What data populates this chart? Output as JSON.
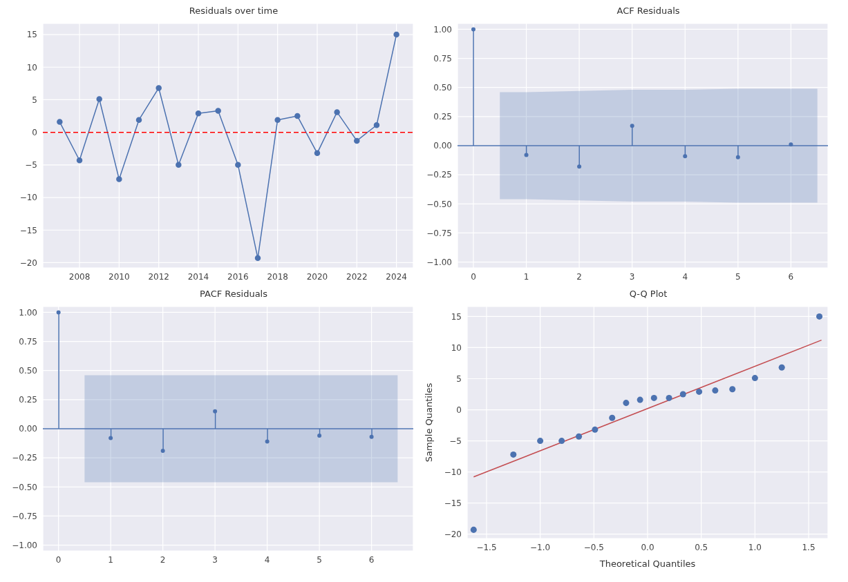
{
  "chart_data": [
    {
      "type": "line",
      "title": "Residuals over time",
      "x": [
        2007,
        2008,
        2009,
        2010,
        2011,
        2012,
        2013,
        2014,
        2015,
        2016,
        2017,
        2018,
        2019,
        2020,
        2021,
        2022,
        2023,
        2024
      ],
      "values": [
        1.6,
        -4.3,
        5.1,
        -7.2,
        1.9,
        6.8,
        -5.0,
        2.9,
        3.3,
        -5.0,
        -19.3,
        1.9,
        2.5,
        -3.2,
        3.1,
        -1.3,
        1.1,
        15.0
      ],
      "color": "#4c72b0",
      "marker": "circle",
      "grid": true,
      "xlim": [
        2006.15,
        2024.85
      ],
      "xticks": [
        2008,
        2010,
        2012,
        2014,
        2016,
        2018,
        2020,
        2022,
        2024
      ],
      "ylim": [
        -20.8,
        16.7
      ],
      "yticks": [
        {
          "value": -20,
          "label": "−20"
        },
        {
          "value": -15,
          "label": "−15"
        },
        {
          "value": -10,
          "label": "−10"
        },
        {
          "value": -5,
          "label": "−5"
        },
        0,
        5,
        10,
        15
      ],
      "ref_lines": [
        {
          "axis": "y",
          "value": 0,
          "color": "#ff0000",
          "line_style": "dashed"
        }
      ]
    },
    {
      "type": "lollipop",
      "title": "ACF Residuals",
      "x": [
        0,
        1,
        2,
        3,
        4,
        5,
        6
      ],
      "grid": true,
      "series": [
        {
          "color": "#4c72b0",
          "values": [
            1.0,
            -0.08,
            -0.18,
            0.17,
            -0.09,
            -0.1,
            0.01
          ]
        },
        {
          "type": "line",
          "color": "#4c72b0",
          "marker": "none",
          "x": [
            -0.3,
            0.5,
            1,
            2,
            3,
            4,
            5,
            6,
            6.5,
            6.7
          ],
          "values": [
            0,
            0,
            0,
            0,
            0,
            0,
            0,
            0,
            0,
            0
          ],
          "lower": [
            null,
            -0.46,
            -0.46,
            -0.47,
            -0.48,
            -0.48,
            -0.49,
            -0.49,
            -0.49,
            null
          ],
          "upper": [
            null,
            0.46,
            0.46,
            0.47,
            0.48,
            0.48,
            0.49,
            0.49,
            0.49,
            null
          ]
        }
      ],
      "xlim": [
        -0.3,
        6.7
      ],
      "xticks": [
        0,
        1,
        2,
        3,
        4,
        5,
        6
      ],
      "ylim": [
        -1.05,
        1.05
      ],
      "yticks": [
        {
          "value": -1,
          "label": "−1.00"
        },
        {
          "value": -0.75,
          "label": "−0.75"
        },
        {
          "value": -0.5,
          "label": "−0.50"
        },
        {
          "value": -0.25,
          "label": "−0.25"
        },
        {
          "value": 0,
          "label": "0.00"
        },
        {
          "value": 0.25,
          "label": "0.25"
        },
        {
          "value": 0.5,
          "label": "0.50"
        },
        {
          "value": 0.75,
          "label": "0.75"
        },
        {
          "value": 1,
          "label": "1.00"
        }
      ]
    },
    {
      "type": "lollipop",
      "title": "PACF Residuals",
      "x": [
        0,
        1,
        2,
        3,
        4,
        5,
        6
      ],
      "grid": true,
      "series": [
        {
          "color": "#4c72b0",
          "values": [
            1.0,
            -0.08,
            -0.19,
            0.15,
            -0.11,
            -0.06,
            -0.07
          ]
        },
        {
          "type": "line",
          "color": "#4c72b0",
          "marker": "none",
          "x": [
            -0.3,
            0.5,
            6.5,
            6.8
          ],
          "values": [
            0,
            0,
            0,
            0
          ],
          "lower": [
            null,
            -0.46,
            -0.46,
            null
          ],
          "upper": [
            null,
            0.46,
            0.46,
            null
          ]
        }
      ],
      "xlim": [
        -0.3,
        6.8
      ],
      "xticks": [
        0,
        1,
        2,
        3,
        4,
        5,
        6
      ],
      "ylim": [
        -1.05,
        1.05
      ],
      "yticks": [
        {
          "value": -1,
          "label": "−1.00"
        },
        {
          "value": -0.75,
          "label": "−0.75"
        },
        {
          "value": -0.5,
          "label": "−0.50"
        },
        {
          "value": -0.25,
          "label": "−0.25"
        },
        {
          "value": 0,
          "label": "0.00"
        },
        {
          "value": 0.25,
          "label": "0.25"
        },
        {
          "value": 0.5,
          "label": "0.50"
        },
        {
          "value": 0.75,
          "label": "0.75"
        },
        {
          "value": 1,
          "label": "1.00"
        }
      ]
    },
    {
      "type": "scatter",
      "title": "Q-Q Plot",
      "xlabel": "Theoretical Quantiles",
      "ylabel": "Sample Quantiles",
      "grid": true,
      "series": [
        {
          "color": "#4c72b0",
          "marker": "circle",
          "x": [
            -1.62,
            -1.25,
            -1.0,
            -0.8,
            -0.64,
            -0.49,
            -0.33,
            -0.2,
            -0.07,
            0.06,
            0.2,
            0.33,
            0.48,
            0.63,
            0.79,
            1.0,
            1.25,
            1.6
          ],
          "values": [
            -19.3,
            -7.2,
            -5.0,
            -5.0,
            -4.3,
            -3.2,
            -1.3,
            1.1,
            1.6,
            1.9,
            1.9,
            2.5,
            2.9,
            3.1,
            3.3,
            5.1,
            6.8,
            15.0
          ]
        },
        {
          "type": "line",
          "color": "#c44e52",
          "marker": "none",
          "x": [
            -1.62,
            1.62
          ],
          "values": [
            -10.8,
            11.2
          ]
        }
      ],
      "xlim": [
        -1.68,
        1.68
      ],
      "xticks": [
        {
          "value": -1.5,
          "label": "−1.5"
        },
        {
          "value": -1,
          "label": "−1.0"
        },
        {
          "value": -0.5,
          "label": "−0.5"
        },
        {
          "value": 0,
          "label": "0.0"
        },
        {
          "value": 0.5,
          "label": "0.5"
        },
        {
          "value": 1,
          "label": "1.0"
        },
        {
          "value": 1.5,
          "label": "1.5"
        }
      ],
      "ylim": [
        -20.7,
        16.6
      ],
      "yticks": [
        {
          "value": -20,
          "label": "−20"
        },
        {
          "value": -15,
          "label": "−15"
        },
        {
          "value": -10,
          "label": "−10"
        },
        {
          "value": -5,
          "label": "−5"
        },
        0,
        5,
        10,
        15
      ]
    }
  ]
}
